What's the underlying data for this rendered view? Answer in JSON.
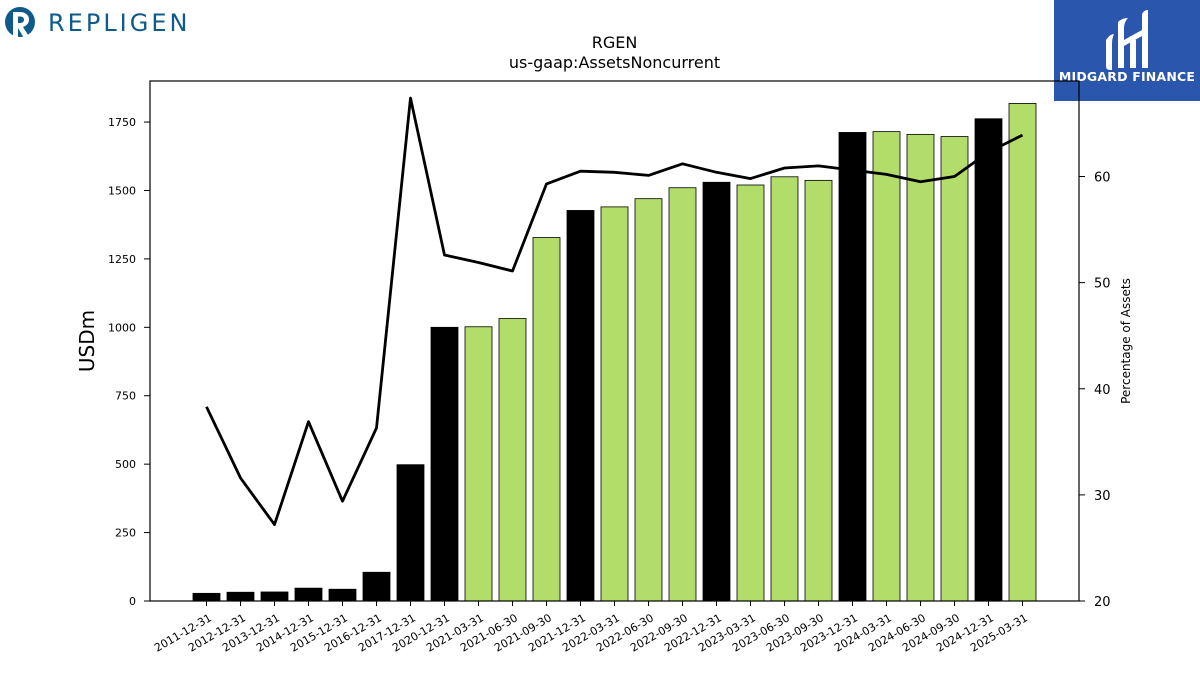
{
  "logos": {
    "left": {
      "text": "REPLIGEN",
      "color": "#0e5a8a"
    },
    "right": {
      "text": "MIDGARD FINANCE",
      "background": "#2b56ad"
    }
  },
  "chart_data": {
    "type": "bar",
    "title": "RGEN",
    "subtitle": "us-gaap:AssetsNoncurrent",
    "ylabel": "USDm",
    "ylabel_right": "Percentage of Assets",
    "categories": [
      "2011-12-31",
      "2012-12-31",
      "2013-12-31",
      "2014-12-31",
      "2015-12-31",
      "2016-12-31",
      "2017-12-31",
      "2020-12-31",
      "2021-03-31",
      "2021-06-30",
      "2021-09-30",
      "2021-12-31",
      "2022-03-31",
      "2022-06-30",
      "2022-09-30",
      "2022-12-31",
      "2023-03-31",
      "2023-06-30",
      "2023-09-30",
      "2023-12-31",
      "2024-03-31",
      "2024-06-30",
      "2024-09-30",
      "2024-12-31",
      "2025-03-31"
    ],
    "series": [
      {
        "values": [
          28,
          32,
          33,
          47,
          43,
          105,
          498,
          1000,
          1002,
          1032,
          1328,
          1427,
          1440,
          1470,
          1510,
          1530,
          1520,
          1550,
          1537,
          1712,
          1715,
          1705,
          1697,
          1762,
          1818
        ]
      },
      {
        "axis": "right",
        "values": [
          38.3,
          31.6,
          27.2,
          36.9,
          29.4,
          36.3,
          67.4,
          52.6,
          51.9,
          51.1,
          59.3,
          60.5,
          60.4,
          60.1,
          61.2,
          60.4,
          59.8,
          60.8,
          61.0,
          60.6,
          60.2,
          59.5,
          60.0,
          62.3,
          63.9
        ]
      }
    ],
    "annual_flags": [
      true,
      true,
      true,
      true,
      true,
      true,
      true,
      true,
      false,
      false,
      false,
      true,
      false,
      false,
      false,
      true,
      false,
      false,
      false,
      true,
      false,
      false,
      false,
      true,
      false
    ],
    "colors": {
      "annual": "#000000",
      "quarterly": "#b2dd6a",
      "line": "#000000"
    },
    "ylim": [
      0,
      1900
    ],
    "ylim_right": [
      20,
      69
    ],
    "yticks": [
      0,
      250,
      500,
      750,
      1000,
      1250,
      1500,
      1750
    ],
    "yticks_right": [
      20,
      30,
      40,
      50,
      60
    ]
  }
}
